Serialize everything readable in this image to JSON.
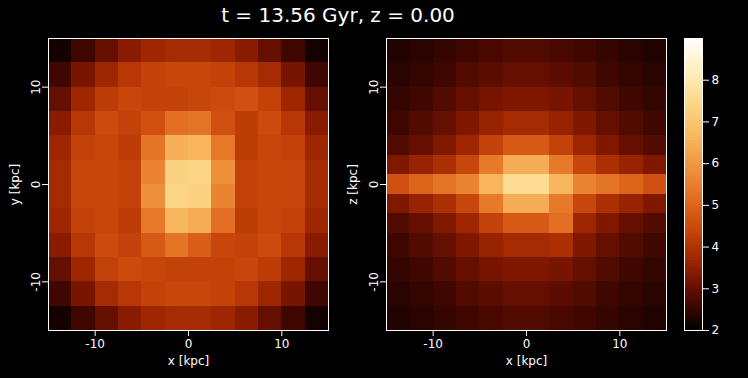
{
  "title": "t = 13.56 Gyr, z = 0.00",
  "colorbar": {
    "range": [
      2,
      9
    ],
    "ticks": [
      2,
      3,
      4,
      5,
      6,
      7,
      8
    ]
  },
  "chart_data": [
    {
      "type": "heatmap",
      "xlabel": "x [kpc]",
      "ylabel": "y [kpc]",
      "xlim": [
        -15,
        15
      ],
      "ylim": [
        -15,
        15
      ],
      "xticks": [
        -10,
        0,
        10
      ],
      "yticks": [
        -10,
        0,
        10
      ],
      "x_bins": [
        -15,
        -12.5,
        -10,
        -7.5,
        -5,
        -2.5,
        0,
        2.5,
        5,
        7.5,
        10,
        12.5,
        15
      ],
      "y_bins": [
        15,
        12.5,
        10,
        7.5,
        5,
        2.5,
        0,
        -2.5,
        -5,
        -7.5,
        -10,
        -12.5,
        -15
      ],
      "cells": [
        [
          2.2,
          2.6,
          3.0,
          3.4,
          3.7,
          3.8,
          3.8,
          3.7,
          3.4,
          3.0,
          2.6,
          2.2
        ],
        [
          2.6,
          3.2,
          3.7,
          4.1,
          4.3,
          4.4,
          4.4,
          4.3,
          4.1,
          3.8,
          3.2,
          2.6
        ],
        [
          3.0,
          3.7,
          4.2,
          4.4,
          4.3,
          4.3,
          4.4,
          4.5,
          4.6,
          4.3,
          3.7,
          3.0
        ],
        [
          3.4,
          4.1,
          4.5,
          4.3,
          4.6,
          5.2,
          5.3,
          4.6,
          4.2,
          4.5,
          4.1,
          3.4
        ],
        [
          3.7,
          4.3,
          4.4,
          4.2,
          5.3,
          6.5,
          6.6,
          5.4,
          4.2,
          4.4,
          4.3,
          3.7
        ],
        [
          3.8,
          4.4,
          4.4,
          4.3,
          5.6,
          7.3,
          7.4,
          5.8,
          4.3,
          4.4,
          4.4,
          3.8
        ],
        [
          3.8,
          4.4,
          4.4,
          4.3,
          5.8,
          7.4,
          7.3,
          5.6,
          4.3,
          4.4,
          4.4,
          3.8
        ],
        [
          3.7,
          4.3,
          4.4,
          4.2,
          5.4,
          6.6,
          6.4,
          5.2,
          4.2,
          4.4,
          4.3,
          3.7
        ],
        [
          3.4,
          4.1,
          4.5,
          4.3,
          4.8,
          5.3,
          4.9,
          4.4,
          4.3,
          4.5,
          4.1,
          3.4
        ],
        [
          3.0,
          3.7,
          4.3,
          4.5,
          4.4,
          4.3,
          4.3,
          4.3,
          4.4,
          4.2,
          3.7,
          3.0
        ],
        [
          2.6,
          3.2,
          3.8,
          4.1,
          4.3,
          4.4,
          4.4,
          4.3,
          4.1,
          3.7,
          3.2,
          2.6
        ],
        [
          2.2,
          2.6,
          3.0,
          3.4,
          3.7,
          3.8,
          3.8,
          3.7,
          3.4,
          3.0,
          2.6,
          2.2
        ]
      ]
    },
    {
      "type": "heatmap",
      "xlabel": "x [kpc]",
      "ylabel": "z [kpc]",
      "xlim": [
        -15,
        15
      ],
      "ylim": [
        -15,
        15
      ],
      "xticks": [
        -10,
        0,
        10
      ],
      "yticks": [
        -10,
        0,
        10
      ],
      "x_bins": [
        -15,
        -12.5,
        -10,
        -7.5,
        -5,
        -2.5,
        0,
        2.5,
        5,
        7.5,
        10,
        12.5,
        15
      ],
      "y_bins": [
        15,
        12.5,
        10,
        7.5,
        5,
        3,
        1,
        -1,
        -3,
        -5,
        -7.5,
        -10,
        -12.5,
        -15
      ],
      "cells": [
        [
          2.3,
          2.4,
          2.5,
          2.6,
          2.7,
          2.8,
          2.8,
          2.7,
          2.6,
          2.5,
          2.4,
          2.3
        ],
        [
          2.4,
          2.5,
          2.6,
          2.8,
          2.9,
          3.0,
          3.0,
          2.9,
          2.8,
          2.6,
          2.5,
          2.4
        ],
        [
          2.5,
          2.6,
          2.8,
          3.0,
          3.2,
          3.3,
          3.3,
          3.2,
          3.0,
          2.8,
          2.6,
          2.5
        ],
        [
          2.6,
          2.8,
          3.0,
          3.3,
          3.6,
          3.8,
          3.8,
          3.6,
          3.3,
          3.0,
          2.8,
          2.6
        ],
        [
          2.8,
          3.0,
          3.3,
          3.7,
          4.3,
          4.8,
          4.8,
          4.3,
          3.7,
          3.3,
          3.0,
          2.8
        ],
        [
          3.3,
          3.6,
          3.9,
          4.4,
          5.4,
          6.4,
          6.4,
          5.4,
          4.4,
          3.9,
          3.6,
          3.3
        ],
        [
          4.6,
          5.0,
          5.3,
          5.6,
          6.6,
          7.6,
          7.6,
          6.6,
          5.6,
          5.3,
          5.0,
          4.6
        ],
        [
          3.3,
          3.6,
          3.9,
          4.4,
          5.4,
          6.4,
          6.4,
          5.4,
          4.4,
          3.9,
          3.6,
          3.3
        ],
        [
          2.8,
          3.0,
          3.3,
          3.7,
          4.3,
          4.8,
          4.8,
          5.2,
          3.7,
          3.3,
          3.0,
          2.8
        ],
        [
          2.6,
          2.8,
          3.0,
          3.3,
          3.6,
          3.8,
          3.8,
          3.9,
          3.3,
          3.0,
          2.8,
          2.6
        ],
        [
          2.5,
          2.6,
          2.8,
          3.0,
          3.2,
          3.3,
          3.3,
          3.2,
          3.0,
          2.8,
          2.6,
          2.5
        ],
        [
          2.4,
          2.5,
          2.6,
          2.8,
          2.9,
          3.0,
          3.0,
          2.9,
          2.8,
          2.6,
          2.5,
          2.4
        ],
        [
          2.3,
          2.4,
          2.5,
          2.6,
          2.7,
          2.8,
          2.8,
          2.7,
          2.6,
          2.5,
          2.4,
          2.3
        ]
      ]
    }
  ]
}
